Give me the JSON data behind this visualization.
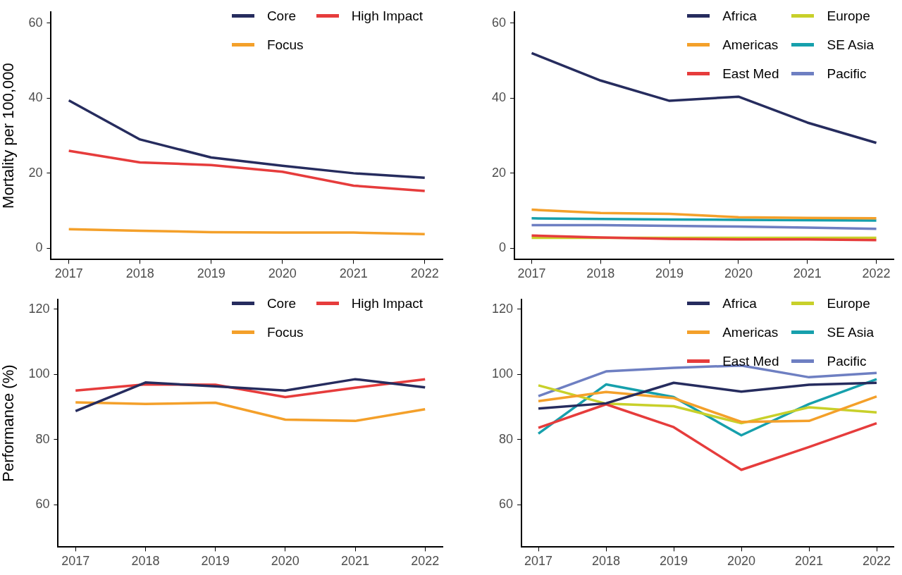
{
  "chart_data": [
    {
      "type": "line",
      "ylabel": "Mortality per 100,000",
      "x": [
        2017,
        2018,
        2019,
        2020,
        2021,
        2022
      ],
      "xlim": [
        2016.75,
        2022.25
      ],
      "xticks": [
        2017,
        2018,
        2019,
        2020,
        2021,
        2022
      ],
      "ylim": [
        -3,
        63
      ],
      "yticks": [
        0,
        20,
        40,
        60
      ],
      "grid": false,
      "legend": "top right",
      "marker": "none",
      "series": [
        {
          "name": "Core",
          "color": "#262c5e",
          "values": [
            39.4,
            29.0,
            24.2,
            22.0,
            20.0,
            18.8
          ]
        },
        {
          "name": "Focus",
          "color": "#f4a02a",
          "values": [
            5.1,
            4.7,
            4.3,
            4.2,
            4.2,
            3.8
          ]
        },
        {
          "name": "High Impact",
          "color": "#e63c3c",
          "values": [
            26.0,
            22.9,
            22.2,
            20.4,
            16.7,
            15.3
          ]
        }
      ]
    },
    {
      "type": "line",
      "x": [
        2017,
        2018,
        2019,
        2020,
        2021,
        2022
      ],
      "xlim": [
        2016.75,
        2022.25
      ],
      "xticks": [
        2017,
        2018,
        2019,
        2020,
        2021,
        2022
      ],
      "ylim": [
        -3,
        63
      ],
      "yticks": [
        0,
        20,
        40,
        60
      ],
      "grid": false,
      "legend": "top right",
      "marker": "none",
      "series": [
        {
          "name": "Africa",
          "color": "#262c5e",
          "values": [
            52.0,
            44.7,
            39.3,
            40.4,
            33.5,
            28.1
          ]
        },
        {
          "name": "Americas",
          "color": "#f4a02a",
          "values": [
            10.3,
            9.4,
            9.2,
            8.3,
            8.1,
            8.0
          ]
        },
        {
          "name": "East Med",
          "color": "#e63c3c",
          "values": [
            3.4,
            2.9,
            2.5,
            2.4,
            2.4,
            2.2
          ]
        },
        {
          "name": "Europe",
          "color": "#c8d02a",
          "values": [
            2.8,
            2.8,
            2.8,
            2.8,
            2.8,
            2.8
          ]
        },
        {
          "name": "SE Asia",
          "color": "#16a0ac",
          "values": [
            8.0,
            7.8,
            7.7,
            7.6,
            7.5,
            7.4
          ]
        },
        {
          "name": "Pacific",
          "color": "#6e7fc2",
          "values": [
            6.2,
            6.2,
            6.0,
            5.8,
            5.5,
            5.2
          ]
        }
      ]
    },
    {
      "type": "line",
      "ylabel": "Performance (%)",
      "x": [
        2017,
        2018,
        2019,
        2020,
        2021,
        2022
      ],
      "xlim": [
        2016.75,
        2022.25
      ],
      "xticks": [
        2017,
        2018,
        2019,
        2020,
        2021,
        2022
      ],
      "ylim": [
        47,
        123
      ],
      "yticks": [
        60,
        80,
        100,
        120
      ],
      "grid": false,
      "legend": "top right",
      "marker": "none",
      "series": [
        {
          "name": "Core",
          "color": "#262c5e",
          "values": [
            88.7,
            97.5,
            96.3,
            95.0,
            98.5,
            96.0
          ]
        },
        {
          "name": "Focus",
          "color": "#f4a02a",
          "values": [
            91.4,
            90.9,
            91.3,
            86.1,
            85.7,
            89.3
          ]
        },
        {
          "name": "High Impact",
          "color": "#e63c3c",
          "values": [
            95.0,
            96.9,
            96.8,
            93.0,
            95.9,
            98.5
          ]
        }
      ]
    },
    {
      "type": "line",
      "x": [
        2017,
        2018,
        2019,
        2020,
        2021,
        2022
      ],
      "xlim": [
        2016.75,
        2022.25
      ],
      "xticks": [
        2017,
        2018,
        2019,
        2020,
        2021,
        2022
      ],
      "ylim": [
        47,
        123
      ],
      "yticks": [
        60,
        80,
        100,
        120
      ],
      "grid": false,
      "legend": "top right",
      "marker": "none",
      "series": [
        {
          "name": "Africa",
          "color": "#262c5e",
          "values": [
            89.5,
            91.1,
            97.4,
            94.7,
            96.8,
            97.4
          ]
        },
        {
          "name": "Americas",
          "color": "#f4a02a",
          "values": [
            91.8,
            94.6,
            92.7,
            85.4,
            85.7,
            93.2
          ]
        },
        {
          "name": "East Med",
          "color": "#e63c3c",
          "values": [
            83.6,
            90.8,
            83.8,
            70.7,
            77.7,
            85.0
          ]
        },
        {
          "name": "Europe",
          "color": "#c8d02a",
          "values": [
            96.6,
            91.0,
            90.2,
            85.0,
            89.9,
            88.3
          ]
        },
        {
          "name": "SE Asia",
          "color": "#16a0ac",
          "values": [
            81.8,
            96.9,
            93.0,
            81.3,
            90.9,
            98.5
          ]
        },
        {
          "name": "Pacific",
          "color": "#6e7fc2",
          "values": [
            93.3,
            100.9,
            102.0,
            102.7,
            99.1,
            100.4
          ]
        }
      ]
    }
  ]
}
